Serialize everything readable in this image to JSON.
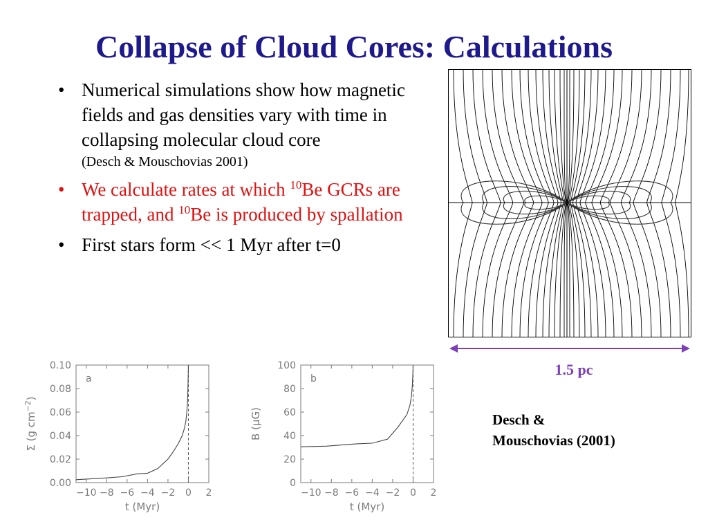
{
  "slide": {
    "title": "Collapse of Cloud Cores: Calculations",
    "bullets": [
      {
        "text": "Numerical simulations show how magnetic fields and gas densities vary with time in collapsing molecular cloud core",
        "citation": "(Desch & Mouschovias 2001)"
      },
      {
        "parts": [
          "We calculate rates at which ",
          "10",
          "Be GCRs are trapped, and ",
          "10",
          "Be is produced by spallation"
        ],
        "color": "#e01010"
      },
      {
        "text": "First stars form << 1 Myr after t=0"
      }
    ],
    "bullet_symbol": "•",
    "scale_label": "1.5 pc",
    "credit_line1": "Desch &",
    "credit_line2": "Mouschovias (2001)",
    "colors": {
      "title": "#1f1a8c",
      "red_bullet": "#e01010",
      "scale": "#7c3fb8",
      "axis": "#7a7a7a"
    }
  },
  "chart_data": [
    {
      "type": "line",
      "panel_label": "a",
      "xlabel": "t (Myr)",
      "ylabel": "Σ (g cm",
      "ylabel_sup": "−2",
      "ylabel_close": ")",
      "xlim": [
        -11,
        2
      ],
      "ylim": [
        0,
        0.1
      ],
      "xticks": [
        -10,
        -8,
        -6,
        -4,
        -2,
        0,
        2
      ],
      "xtick_labels": [
        "−10",
        "−8",
        "−6",
        "−4",
        "−2",
        "0",
        "2"
      ],
      "yticks": [
        0,
        0.02,
        0.04,
        0.06,
        0.08,
        0.1
      ],
      "ytick_labels": [
        "0.00",
        "0.02",
        "0.04",
        "0.06",
        "0.08",
        "0.10"
      ],
      "vline_x": 0,
      "series": [
        {
          "x": [
            -11,
            -10,
            -8,
            -6.5,
            -5,
            -4,
            -3,
            -2,
            -1.5,
            -1,
            -0.6,
            -0.4,
            -0.25,
            -0.15,
            -0.08,
            -0.03,
            0.0
          ],
          "y": [
            0.0025,
            0.003,
            0.004,
            0.005,
            0.0075,
            0.008,
            0.012,
            0.02,
            0.026,
            0.033,
            0.04,
            0.046,
            0.052,
            0.06,
            0.07,
            0.085,
            0.1
          ]
        }
      ]
    },
    {
      "type": "line",
      "panel_label": "b",
      "xlabel": "t (Myr)",
      "ylabel": "B (μG)",
      "xlim": [
        -11,
        2
      ],
      "ylim": [
        0,
        100
      ],
      "xticks": [
        -10,
        -8,
        -6,
        -4,
        -2,
        0,
        2
      ],
      "xtick_labels": [
        "−10",
        "−8",
        "−6",
        "−4",
        "−2",
        "0",
        "2"
      ],
      "yticks": [
        0,
        20,
        40,
        60,
        80,
        100
      ],
      "ytick_labels": [
        "0",
        "20",
        "40",
        "60",
        "80",
        "100"
      ],
      "vline_x": 0,
      "series": [
        {
          "x": [
            -11,
            -8.5,
            -7,
            -5.5,
            -4,
            -2.5,
            -1.5,
            -0.6,
            -0.3,
            -0.15,
            -0.07,
            -0.02,
            0.0
          ],
          "y": [
            30.5,
            31,
            32,
            33,
            33.5,
            37,
            47,
            58,
            66,
            74,
            83,
            93,
            100
          ]
        }
      ]
    }
  ]
}
